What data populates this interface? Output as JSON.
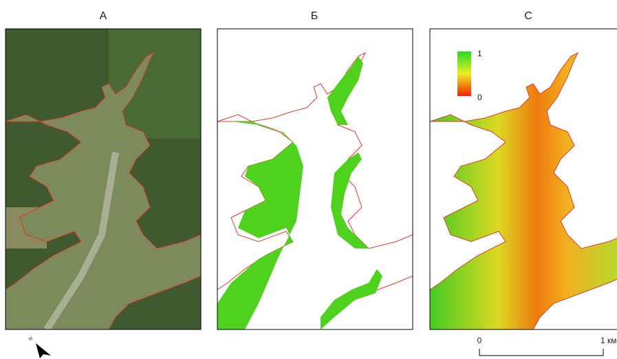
{
  "panels": [
    {
      "title": "А"
    },
    {
      "title": "Б"
    },
    {
      "title": "С"
    }
  ],
  "legend": {
    "max": 1,
    "min": 0
  },
  "scale_bar": {
    "start": 0,
    "end_label": "1 км"
  },
  "north_arrow": {
    "label": "N"
  }
}
